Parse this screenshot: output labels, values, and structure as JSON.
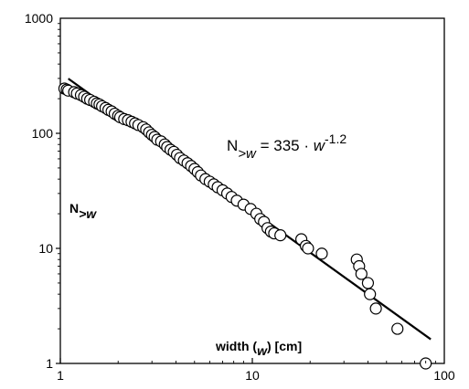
{
  "chart_data": {
    "type": "scatter",
    "xscale": "log",
    "yscale": "log",
    "xlim": [
      1,
      100
    ],
    "ylim": [
      1,
      1000
    ],
    "x_ticks": [
      "1",
      "10",
      "100"
    ],
    "y_ticks": [
      "1",
      "10",
      "100",
      "1000"
    ],
    "xlabel": {
      "pre": "width (",
      "var": "w",
      "post": ") [cm]"
    },
    "ylabel": {
      "main": "N",
      "sub": ">w"
    },
    "grid": false,
    "legend": "none",
    "annotation": {
      "lhs_main": "N",
      "lhs_sub": ">w",
      "rhs_coef": " = 335 · ",
      "rhs_var": "w",
      "rhs_exp": "-1.2"
    },
    "fit": {
      "coefficient": 335,
      "exponent": -1.2,
      "x_range": [
        1.1,
        85
      ]
    },
    "points": [
      {
        "x": 1.05,
        "y": 245
      },
      {
        "x": 1.08,
        "y": 240
      },
      {
        "x": 1.1,
        "y": 235
      },
      {
        "x": 1.18,
        "y": 228
      },
      {
        "x": 1.22,
        "y": 222
      },
      {
        "x": 1.28,
        "y": 215
      },
      {
        "x": 1.33,
        "y": 208
      },
      {
        "x": 1.38,
        "y": 200
      },
      {
        "x": 1.43,
        "y": 195
      },
      {
        "x": 1.5,
        "y": 188
      },
      {
        "x": 1.55,
        "y": 182
      },
      {
        "x": 1.6,
        "y": 178
      },
      {
        "x": 1.65,
        "y": 172
      },
      {
        "x": 1.72,
        "y": 166
      },
      {
        "x": 1.78,
        "y": 160
      },
      {
        "x": 1.85,
        "y": 155
      },
      {
        "x": 1.92,
        "y": 148
      },
      {
        "x": 2.0,
        "y": 142
      },
      {
        "x": 2.05,
        "y": 138
      },
      {
        "x": 2.15,
        "y": 133
      },
      {
        "x": 2.25,
        "y": 130
      },
      {
        "x": 2.35,
        "y": 126
      },
      {
        "x": 2.45,
        "y": 122
      },
      {
        "x": 2.55,
        "y": 118
      },
      {
        "x": 2.7,
        "y": 113
      },
      {
        "x": 2.8,
        "y": 108
      },
      {
        "x": 2.9,
        "y": 102
      },
      {
        "x": 3.0,
        "y": 97
      },
      {
        "x": 3.1,
        "y": 93
      },
      {
        "x": 3.2,
        "y": 88
      },
      {
        "x": 3.35,
        "y": 85
      },
      {
        "x": 3.5,
        "y": 80
      },
      {
        "x": 3.6,
        "y": 76
      },
      {
        "x": 3.75,
        "y": 72
      },
      {
        "x": 3.9,
        "y": 69
      },
      {
        "x": 4.05,
        "y": 65
      },
      {
        "x": 4.2,
        "y": 61
      },
      {
        "x": 4.4,
        "y": 58
      },
      {
        "x": 4.6,
        "y": 55
      },
      {
        "x": 4.8,
        "y": 52
      },
      {
        "x": 5.0,
        "y": 49
      },
      {
        "x": 5.2,
        "y": 46
      },
      {
        "x": 5.4,
        "y": 43
      },
      {
        "x": 5.7,
        "y": 40
      },
      {
        "x": 6.0,
        "y": 38
      },
      {
        "x": 6.3,
        "y": 36
      },
      {
        "x": 6.6,
        "y": 34
      },
      {
        "x": 7.0,
        "y": 32
      },
      {
        "x": 7.4,
        "y": 30
      },
      {
        "x": 7.8,
        "y": 28
      },
      {
        "x": 8.3,
        "y": 26
      },
      {
        "x": 9.0,
        "y": 24
      },
      {
        "x": 9.8,
        "y": 22
      },
      {
        "x": 10.5,
        "y": 20
      },
      {
        "x": 11.0,
        "y": 18
      },
      {
        "x": 11.5,
        "y": 17
      },
      {
        "x": 12.0,
        "y": 15
      },
      {
        "x": 12.5,
        "y": 14
      },
      {
        "x": 13.0,
        "y": 13.5
      },
      {
        "x": 14.0,
        "y": 13
      },
      {
        "x": 18.0,
        "y": 12
      },
      {
        "x": 19.0,
        "y": 10.5
      },
      {
        "x": 19.5,
        "y": 10
      },
      {
        "x": 23.0,
        "y": 9
      },
      {
        "x": 35.0,
        "y": 8
      },
      {
        "x": 36.0,
        "y": 7
      },
      {
        "x": 37.0,
        "y": 6
      },
      {
        "x": 40.0,
        "y": 5
      },
      {
        "x": 41.0,
        "y": 4
      },
      {
        "x": 44.0,
        "y": 3
      },
      {
        "x": 57.0,
        "y": 2
      },
      {
        "x": 80.0,
        "y": 1
      }
    ]
  }
}
